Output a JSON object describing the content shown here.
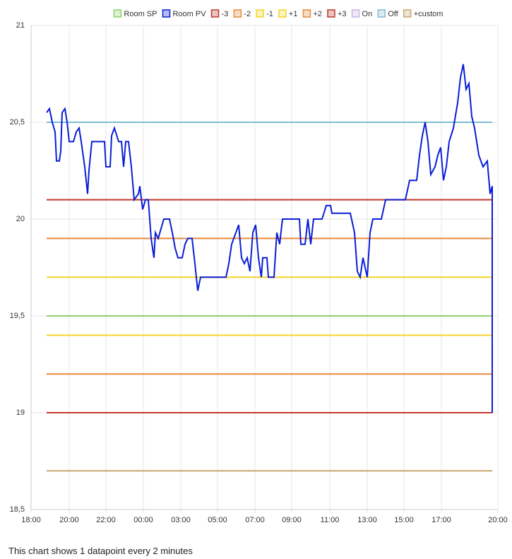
{
  "chart_data": {
    "type": "line",
    "footnote": "This chart shows 1 datapoint every 2 minutes",
    "xlim": [
      0,
      661
    ],
    "xticks": [
      {
        "value": 0,
        "label": "18:00"
      },
      {
        "value": 54,
        "label": "20:00"
      },
      {
        "value": 106,
        "label": "22:00"
      },
      {
        "value": 159,
        "label": "00:00"
      },
      {
        "value": 212,
        "label": "03:00"
      },
      {
        "value": 264,
        "label": "05:00"
      },
      {
        "value": 317,
        "label": "07:00"
      },
      {
        "value": 369,
        "label": "09:00"
      },
      {
        "value": 423,
        "label": "11:00"
      },
      {
        "value": 476,
        "label": "13:00"
      },
      {
        "value": 528,
        "label": "15:00"
      },
      {
        "value": 581,
        "label": "17:00"
      },
      {
        "value": 661,
        "label": "20:00"
      }
    ],
    "ylim": [
      18.5,
      21
    ],
    "yticks": [
      {
        "value": 18.5,
        "label": "18,5"
      },
      19,
      {
        "value": 19.5,
        "label": "19,5"
      },
      20,
      {
        "value": 20.5,
        "label": "20,5"
      },
      21
    ],
    "grid": true,
    "legend": "top",
    "series": [
      {
        "name": "Room SP",
        "color": "#8fd16b",
        "x": [
          22,
          653
        ],
        "values": [
          19.5,
          19.5
        ]
      },
      {
        "name": "Room PV",
        "color": "#0a1ed6",
        "x": [
          22,
          26,
          30,
          34,
          36,
          40,
          42,
          44,
          48,
          51,
          54,
          60,
          64,
          68,
          71,
          76,
          80,
          82,
          86,
          104,
          106,
          112,
          114,
          118,
          124,
          128,
          131,
          134,
          138,
          142,
          146,
          152,
          154,
          158,
          162,
          166,
          170,
          174,
          176,
          180,
          184,
          188,
          196,
          200,
          204,
          208,
          214,
          218,
          222,
          228,
          232,
          236,
          240,
          276,
          280,
          284,
          290,
          294,
          298,
          302,
          306,
          310,
          314,
          318,
          322,
          326,
          328,
          334,
          336,
          344,
          348,
          352,
          356,
          380,
          382,
          388,
          392,
          396,
          400,
          412,
          418,
          424,
          426,
          452,
          458,
          462,
          466,
          470,
          476,
          480,
          484,
          496,
          502,
          530,
          536,
          546,
          550,
          554,
          558,
          562,
          566,
          572,
          576,
          580,
          584,
          588,
          592,
          598,
          604,
          608,
          612,
          616,
          620,
          624,
          628,
          634,
          640,
          646,
          650,
          653,
          653
        ],
        "values": [
          20.55,
          20.57,
          20.5,
          20.45,
          20.3,
          20.3,
          20.35,
          20.55,
          20.57,
          20.5,
          20.4,
          20.4,
          20.45,
          20.47,
          20.4,
          20.27,
          20.13,
          20.25,
          20.4,
          20.4,
          20.27,
          20.27,
          20.43,
          20.47,
          20.4,
          20.4,
          20.27,
          20.4,
          20.4,
          20.27,
          20.1,
          20.13,
          20.17,
          20.05,
          20.1,
          20.1,
          19.9,
          19.8,
          19.93,
          19.9,
          19.95,
          20.0,
          20.0,
          19.93,
          19.85,
          19.8,
          19.8,
          19.87,
          19.9,
          19.9,
          19.77,
          19.63,
          19.7,
          19.7,
          19.77,
          19.87,
          19.93,
          19.97,
          19.8,
          19.77,
          19.8,
          19.73,
          19.93,
          19.97,
          19.8,
          19.7,
          19.8,
          19.8,
          19.7,
          19.7,
          19.93,
          19.87,
          20.0,
          20.0,
          19.87,
          19.87,
          20.0,
          19.87,
          20.0,
          20.0,
          20.07,
          20.07,
          20.03,
          20.03,
          19.93,
          19.73,
          19.7,
          19.8,
          19.7,
          19.93,
          20.0,
          20.0,
          20.1,
          20.1,
          20.2,
          20.2,
          20.33,
          20.43,
          20.5,
          20.4,
          20.23,
          20.27,
          20.33,
          20.37,
          20.2,
          20.27,
          20.4,
          20.47,
          20.6,
          20.73,
          20.8,
          20.67,
          20.7,
          20.53,
          20.47,
          20.33,
          20.27,
          20.3,
          20.13,
          20.17,
          19.0
        ]
      },
      {
        "name": "-3",
        "color": "#c0392b",
        "x": [
          22,
          653
        ],
        "values": [
          19.0,
          19.0
        ]
      },
      {
        "name": "-2",
        "color": "#e8893a",
        "x": [
          22,
          653
        ],
        "values": [
          19.2,
          19.2
        ]
      },
      {
        "name": "-1",
        "color": "#f5d327",
        "x": [
          22,
          653
        ],
        "values": [
          19.4,
          19.4
        ]
      },
      {
        "name": "+1",
        "color": "#f5d327",
        "x": [
          22,
          653
        ],
        "values": [
          19.7,
          19.7
        ]
      },
      {
        "name": "+2",
        "color": "#e8893a",
        "x": [
          22,
          653
        ],
        "values": [
          19.9,
          19.9
        ]
      },
      {
        "name": "+3",
        "color": "#c0392b",
        "x": [
          22,
          653
        ],
        "values": [
          20.1,
          20.1
        ]
      },
      {
        "name": "On",
        "color": "#c9b3e6",
        "x": [
          22,
          653
        ],
        "values": [
          null,
          null
        ]
      },
      {
        "name": "Off",
        "color": "#7fbcd2",
        "x": [
          22,
          653
        ],
        "values": [
          20.5,
          20.5
        ]
      },
      {
        "name": "+custom",
        "color": "#c8a66e",
        "x": [
          22,
          653
        ],
        "values": [
          18.7,
          18.7
        ]
      }
    ]
  }
}
